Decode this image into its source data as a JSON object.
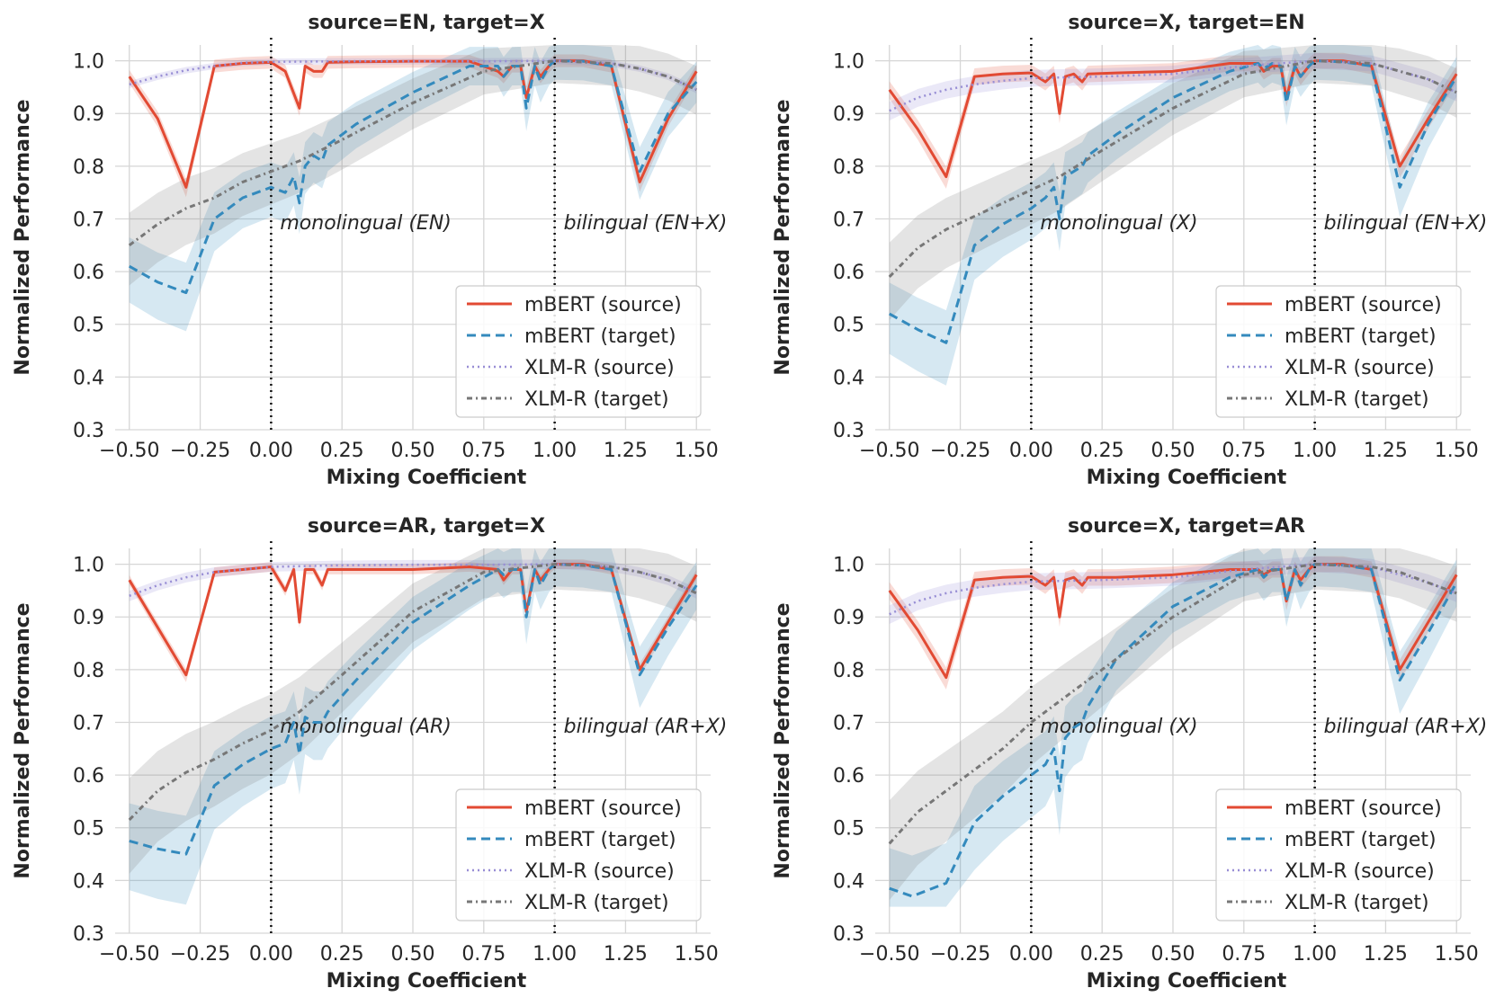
{
  "chart_data": [
    {
      "type": "line",
      "title": "source=EN, target=X",
      "xlabel": "Mixing Coefficient",
      "ylabel": "Normalized Performance",
      "xlim": [
        -0.55,
        1.55
      ],
      "ylim": [
        0.3,
        1.03
      ],
      "xticks": [
        "−0.50",
        "−0.25",
        "0.00",
        "0.25",
        "0.50",
        "0.75",
        "1.00",
        "1.25",
        "1.50"
      ],
      "yticks": [
        "0.3",
        "0.4",
        "0.5",
        "0.6",
        "0.7",
        "0.8",
        "0.9",
        "1.0"
      ],
      "grid": true,
      "legend_position": "lower-right",
      "vlines": [
        0.0,
        1.0
      ],
      "annotations": [
        "monolingual (EN)",
        "bilingual (EN+X)"
      ],
      "series": [
        {
          "name": "mBERT (source)",
          "color": "#E24A33",
          "style": "solid",
          "band": 0.02,
          "x": [
            -0.5,
            -0.4,
            -0.3,
            -0.2,
            -0.1,
            0,
            0.05,
            0.1,
            0.12,
            0.15,
            0.18,
            0.2,
            0.3,
            0.5,
            0.7,
            0.8,
            0.82,
            0.85,
            0.88,
            0.9,
            0.93,
            0.95,
            0.98,
            1.0,
            1.1,
            1.2,
            1.3,
            1.4,
            1.5
          ],
          "y": [
            0.97,
            0.89,
            0.76,
            0.99,
            0.995,
            0.997,
            0.98,
            0.91,
            0.99,
            0.98,
            0.98,
            0.997,
            0.998,
            0.999,
            0.999,
            0.98,
            0.97,
            0.99,
            0.99,
            0.93,
            0.99,
            0.97,
            0.99,
            1.0,
            1.0,
            0.99,
            0.77,
            0.89,
            0.98
          ]
        },
        {
          "name": "mBERT (target)",
          "color": "#348ABD",
          "style": "dashed",
          "band": 0.06,
          "x": [
            -0.5,
            -0.4,
            -0.3,
            -0.2,
            -0.1,
            0,
            0.05,
            0.08,
            0.1,
            0.12,
            0.15,
            0.18,
            0.2,
            0.3,
            0.5,
            0.7,
            0.8,
            0.82,
            0.85,
            0.88,
            0.9,
            0.93,
            0.95,
            0.98,
            1.0,
            1.1,
            1.2,
            1.3,
            1.4,
            1.5
          ],
          "y": [
            0.61,
            0.58,
            0.56,
            0.7,
            0.74,
            0.76,
            0.75,
            0.78,
            0.73,
            0.8,
            0.82,
            0.81,
            0.84,
            0.88,
            0.94,
            0.99,
            0.99,
            0.97,
            0.99,
            0.99,
            0.91,
            0.99,
            0.96,
            0.99,
            1.0,
            0.999,
            0.99,
            0.79,
            0.9,
            0.96
          ]
        },
        {
          "name": "XLM-R (source)",
          "color": "#988ED5",
          "style": "dotted",
          "band": 0.01,
          "x": [
            -0.5,
            -0.4,
            -0.3,
            -0.2,
            -0.1,
            0,
            0.25,
            0.5,
            0.75,
            1.0,
            1.2,
            1.3,
            1.4,
            1.5
          ],
          "y": [
            0.955,
            0.97,
            0.982,
            0.99,
            0.996,
            0.998,
            0.999,
            0.999,
            0.999,
            1.0,
            0.995,
            0.985,
            0.97,
            0.945
          ]
        },
        {
          "name": "XLM-R (target)",
          "color": "#777777",
          "style": "dashdot",
          "band": 0.07,
          "x": [
            -0.5,
            -0.4,
            -0.3,
            -0.2,
            -0.1,
            0,
            0.1,
            0.25,
            0.5,
            0.75,
            1.0,
            1.2,
            1.3,
            1.4,
            1.5
          ],
          "y": [
            0.65,
            0.69,
            0.72,
            0.74,
            0.77,
            0.79,
            0.81,
            0.85,
            0.92,
            0.98,
            1.0,
            0.995,
            0.985,
            0.97,
            0.945
          ]
        }
      ]
    },
    {
      "type": "line",
      "title": "source=X, target=EN",
      "xlabel": "Mixing Coefficient",
      "ylabel": "Normalized Performance",
      "xlim": [
        -0.55,
        1.55
      ],
      "ylim": [
        0.3,
        1.03
      ],
      "xticks": [
        "−0.50",
        "−0.25",
        "0.00",
        "0.25",
        "0.50",
        "0.75",
        "1.00",
        "1.25",
        "1.50"
      ],
      "yticks": [
        "0.3",
        "0.4",
        "0.5",
        "0.6",
        "0.7",
        "0.8",
        "0.9",
        "1.0"
      ],
      "grid": true,
      "legend_position": "lower-right",
      "vlines": [
        0.0,
        1.0
      ],
      "annotations": [
        "monolingual (X)",
        "bilingual (EN+X)"
      ],
      "series": [
        {
          "name": "mBERT (source)",
          "color": "#E24A33",
          "style": "solid",
          "band": 0.025,
          "x": [
            -0.5,
            -0.4,
            -0.3,
            -0.2,
            -0.1,
            0,
            0.05,
            0.08,
            0.1,
            0.12,
            0.15,
            0.18,
            0.2,
            0.3,
            0.5,
            0.7,
            0.8,
            0.82,
            0.85,
            0.88,
            0.9,
            0.93,
            0.95,
            0.98,
            1.0,
            1.1,
            1.2,
            1.3,
            1.4,
            1.5
          ],
          "y": [
            0.945,
            0.87,
            0.78,
            0.97,
            0.975,
            0.977,
            0.96,
            0.975,
            0.9,
            0.97,
            0.975,
            0.96,
            0.975,
            0.977,
            0.98,
            0.995,
            0.995,
            0.98,
            0.99,
            0.99,
            0.93,
            0.99,
            0.97,
            0.99,
            1.0,
            1.0,
            0.99,
            0.8,
            0.89,
            0.975
          ]
        },
        {
          "name": "mBERT (target)",
          "color": "#348ABD",
          "style": "dashed",
          "band": 0.06,
          "x": [
            -0.5,
            -0.4,
            -0.3,
            -0.2,
            -0.1,
            0,
            0.05,
            0.08,
            0.1,
            0.12,
            0.15,
            0.18,
            0.2,
            0.3,
            0.5,
            0.7,
            0.8,
            0.82,
            0.85,
            0.88,
            0.9,
            0.93,
            0.95,
            0.98,
            1.0,
            1.1,
            1.2,
            1.3,
            1.4,
            1.5
          ],
          "y": [
            0.52,
            0.49,
            0.465,
            0.65,
            0.69,
            0.72,
            0.74,
            0.76,
            0.7,
            0.78,
            0.79,
            0.8,
            0.82,
            0.86,
            0.93,
            0.98,
            0.995,
            0.985,
            0.995,
            0.99,
            0.92,
            0.99,
            0.97,
            0.99,
            1.0,
            0.998,
            0.99,
            0.76,
            0.88,
            0.97
          ]
        },
        {
          "name": "XLM-R (source)",
          "color": "#988ED5",
          "style": "dotted",
          "band": 0.025,
          "x": [
            -0.5,
            -0.4,
            -0.3,
            -0.2,
            -0.1,
            0,
            0.25,
            0.5,
            0.75,
            1.0,
            1.2,
            1.3,
            1.4,
            1.5
          ],
          "y": [
            0.905,
            0.93,
            0.945,
            0.955,
            0.962,
            0.967,
            0.97,
            0.975,
            0.99,
            1.0,
            0.995,
            0.98,
            0.965,
            0.94
          ]
        },
        {
          "name": "XLM-R (target)",
          "color": "#777777",
          "style": "dashdot",
          "band": 0.07,
          "x": [
            -0.5,
            -0.4,
            -0.3,
            -0.2,
            -0.1,
            0,
            0.1,
            0.25,
            0.5,
            0.75,
            1.0,
            1.2,
            1.3,
            1.4,
            1.5
          ],
          "y": [
            0.59,
            0.645,
            0.68,
            0.705,
            0.73,
            0.755,
            0.78,
            0.83,
            0.91,
            0.975,
            1.0,
            0.995,
            0.98,
            0.965,
            0.94
          ]
        }
      ]
    },
    {
      "type": "line",
      "title": "source=AR, target=X",
      "xlabel": "Mixing Coefficient",
      "ylabel": "Normalized Performance",
      "xlim": [
        -0.55,
        1.55
      ],
      "ylim": [
        0.3,
        1.03
      ],
      "xticks": [
        "−0.50",
        "−0.25",
        "0.00",
        "0.25",
        "0.50",
        "0.75",
        "1.00",
        "1.25",
        "1.50"
      ],
      "yticks": [
        "0.3",
        "0.4",
        "0.5",
        "0.6",
        "0.7",
        "0.8",
        "0.9",
        "1.0"
      ],
      "grid": true,
      "legend_position": "lower-right",
      "vlines": [
        0.0,
        1.0
      ],
      "annotations": [
        "monolingual (AR)",
        "bilingual (AR+X)"
      ],
      "series": [
        {
          "name": "mBERT (source)",
          "color": "#E24A33",
          "style": "solid",
          "band": 0.015,
          "x": [
            -0.5,
            -0.4,
            -0.3,
            -0.2,
            -0.1,
            0,
            0.05,
            0.08,
            0.1,
            0.12,
            0.15,
            0.18,
            0.2,
            0.3,
            0.5,
            0.7,
            0.8,
            0.82,
            0.85,
            0.88,
            0.9,
            0.93,
            0.95,
            0.98,
            1.0,
            1.1,
            1.2,
            1.3,
            1.4,
            1.5
          ],
          "y": [
            0.97,
            0.88,
            0.79,
            0.985,
            0.99,
            0.995,
            0.95,
            0.99,
            0.89,
            0.99,
            0.99,
            0.96,
            0.99,
            0.99,
            0.99,
            0.995,
            0.99,
            0.97,
            0.99,
            0.99,
            0.91,
            0.99,
            0.97,
            0.99,
            1.0,
            1.0,
            0.99,
            0.8,
            0.89,
            0.98
          ]
        },
        {
          "name": "mBERT (target)",
          "color": "#348ABD",
          "style": "dashed",
          "band": 0.07,
          "x": [
            -0.5,
            -0.4,
            -0.3,
            -0.2,
            -0.1,
            0,
            0.05,
            0.08,
            0.1,
            0.12,
            0.15,
            0.18,
            0.2,
            0.3,
            0.5,
            0.7,
            0.8,
            0.82,
            0.85,
            0.88,
            0.9,
            0.93,
            0.95,
            0.98,
            1.0,
            1.1,
            1.2,
            1.3,
            1.4,
            1.5
          ],
          "y": [
            0.475,
            0.46,
            0.45,
            0.58,
            0.62,
            0.65,
            0.66,
            0.7,
            0.64,
            0.71,
            0.7,
            0.7,
            0.72,
            0.78,
            0.89,
            0.96,
            0.99,
            0.98,
            0.99,
            0.99,
            0.9,
            0.99,
            0.96,
            0.99,
            1.0,
            0.998,
            0.99,
            0.79,
            0.88,
            0.96
          ]
        },
        {
          "name": "XLM-R (source)",
          "color": "#988ED5",
          "style": "dotted",
          "band": 0.015,
          "x": [
            -0.5,
            -0.4,
            -0.3,
            -0.2,
            -0.1,
            0,
            0.25,
            0.5,
            0.75,
            1.0,
            1.2,
            1.3,
            1.4,
            1.5
          ],
          "y": [
            0.94,
            0.96,
            0.975,
            0.985,
            0.99,
            0.995,
            0.998,
            0.999,
            0.999,
            1.0,
            0.995,
            0.985,
            0.97,
            0.945
          ]
        },
        {
          "name": "XLM-R (target)",
          "color": "#777777",
          "style": "dashdot",
          "band": 0.08,
          "x": [
            -0.5,
            -0.4,
            -0.3,
            -0.2,
            -0.1,
            0,
            0.1,
            0.25,
            0.5,
            0.75,
            1.0,
            1.2,
            1.3,
            1.4,
            1.5
          ],
          "y": [
            0.515,
            0.57,
            0.605,
            0.63,
            0.66,
            0.685,
            0.72,
            0.79,
            0.91,
            0.985,
            1.0,
            0.995,
            0.985,
            0.97,
            0.945
          ]
        }
      ]
    },
    {
      "type": "line",
      "title": "source=X, target=AR",
      "xlabel": "Mixing Coefficient",
      "ylabel": "Normalized Performance",
      "xlim": [
        -0.55,
        1.55
      ],
      "ylim": [
        0.3,
        1.03
      ],
      "xticks": [
        "−0.50",
        "−0.25",
        "0.00",
        "0.25",
        "0.50",
        "0.75",
        "1.00",
        "1.25",
        "1.50"
      ],
      "yticks": [
        "0.3",
        "0.4",
        "0.5",
        "0.6",
        "0.7",
        "0.8",
        "0.9",
        "1.0"
      ],
      "grid": true,
      "legend_position": "lower-right",
      "vlines": [
        0.0,
        1.0
      ],
      "annotations": [
        "monolingual (X)",
        "bilingual (AR+X)"
      ],
      "series": [
        {
          "name": "mBERT (source)",
          "color": "#E24A33",
          "style": "solid",
          "band": 0.025,
          "x": [
            -0.5,
            -0.4,
            -0.3,
            -0.2,
            -0.1,
            0,
            0.05,
            0.08,
            0.1,
            0.12,
            0.15,
            0.18,
            0.2,
            0.3,
            0.5,
            0.7,
            0.8,
            0.82,
            0.85,
            0.88,
            0.9,
            0.93,
            0.95,
            0.98,
            1.0,
            1.1,
            1.2,
            1.3,
            1.4,
            1.5
          ],
          "y": [
            0.95,
            0.875,
            0.785,
            0.97,
            0.975,
            0.977,
            0.96,
            0.975,
            0.9,
            0.97,
            0.975,
            0.96,
            0.975,
            0.975,
            0.98,
            0.99,
            0.99,
            0.98,
            0.99,
            0.99,
            0.93,
            0.99,
            0.97,
            0.99,
            1.0,
            1.0,
            0.99,
            0.8,
            0.89,
            0.98
          ]
        },
        {
          "name": "mBERT (target)",
          "color": "#348ABD",
          "style": "dashed",
          "band": 0.07,
          "x": [
            -0.5,
            -0.42,
            -0.3,
            -0.2,
            -0.1,
            0,
            0.05,
            0.08,
            0.1,
            0.12,
            0.15,
            0.18,
            0.2,
            0.3,
            0.5,
            0.7,
            0.8,
            0.82,
            0.85,
            0.88,
            0.9,
            0.93,
            0.95,
            0.98,
            1.0,
            1.1,
            1.2,
            1.3,
            1.4,
            1.5
          ],
          "y": [
            0.385,
            0.37,
            0.395,
            0.51,
            0.56,
            0.6,
            0.62,
            0.65,
            0.57,
            0.67,
            0.69,
            0.7,
            0.73,
            0.82,
            0.92,
            0.975,
            0.99,
            0.975,
            0.99,
            0.99,
            0.93,
            0.99,
            0.96,
            0.99,
            1.0,
            0.998,
            0.99,
            0.78,
            0.87,
            0.965
          ]
        },
        {
          "name": "XLM-R (source)",
          "color": "#988ED5",
          "style": "dotted",
          "band": 0.025,
          "x": [
            -0.5,
            -0.4,
            -0.3,
            -0.2,
            -0.1,
            0,
            0.25,
            0.5,
            0.75,
            1.0,
            1.2,
            1.3,
            1.4,
            1.5
          ],
          "y": [
            0.905,
            0.93,
            0.945,
            0.955,
            0.962,
            0.967,
            0.97,
            0.975,
            0.99,
            1.0,
            0.995,
            0.98,
            0.965,
            0.945
          ]
        },
        {
          "name": "XLM-R (target)",
          "color": "#777777",
          "style": "dashdot",
          "band": 0.08,
          "x": [
            -0.5,
            -0.4,
            -0.3,
            -0.2,
            -0.1,
            0,
            0.1,
            0.25,
            0.5,
            0.75,
            1.0,
            1.2,
            1.3,
            1.4,
            1.5
          ],
          "y": [
            0.47,
            0.53,
            0.57,
            0.61,
            0.65,
            0.7,
            0.74,
            0.8,
            0.9,
            0.98,
            1.0,
            0.995,
            0.985,
            0.965,
            0.945
          ]
        }
      ]
    }
  ]
}
